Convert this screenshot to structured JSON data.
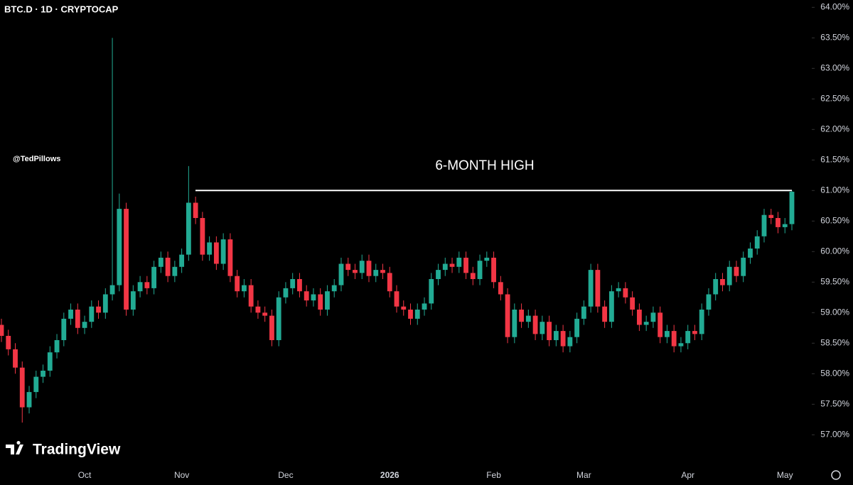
{
  "chart_data": {
    "type": "candlestick",
    "title": "BTC.D · 1D · CRYPTOCAP",
    "watermark": "@TedPillows",
    "brand": "TradingView",
    "annotation": {
      "text": "6-MONTH HIGH",
      "level": 61
    },
    "up_color": "#22ab94",
    "down_color": "#f23645",
    "ylim": [
      56.48,
      64.12
    ],
    "yticks": [
      {
        "value": 57,
        "label": "57.00%"
      },
      {
        "value": 57.5,
        "label": "57.50%"
      },
      {
        "value": 58,
        "label": "58.00%"
      },
      {
        "value": 58.5,
        "label": "58.50%"
      },
      {
        "value": 59,
        "label": "59.00%"
      },
      {
        "value": 59.5,
        "label": "59.50%"
      },
      {
        "value": 60,
        "label": "60.00%"
      },
      {
        "value": 60.5,
        "label": "60.50%"
      },
      {
        "value": 61,
        "label": "61.00%"
      },
      {
        "value": 61.5,
        "label": "61.50%"
      },
      {
        "value": 62,
        "label": "62.00%"
      },
      {
        "value": 62.5,
        "label": "62.50%"
      },
      {
        "value": 63,
        "label": "63.00%"
      },
      {
        "value": 63.5,
        "label": "63.50%"
      },
      {
        "value": 64,
        "label": "64.00%"
      }
    ],
    "categories": [
      null,
      null,
      null,
      null,
      null,
      null,
      null,
      null,
      null,
      null,
      null,
      null,
      "Oct",
      null,
      null,
      null,
      null,
      null,
      null,
      null,
      null,
      null,
      null,
      null,
      null,
      null,
      "Nov",
      null,
      null,
      null,
      null,
      null,
      null,
      null,
      null,
      null,
      null,
      null,
      null,
      null,
      null,
      "Dec",
      null,
      null,
      null,
      null,
      null,
      null,
      null,
      null,
      null,
      null,
      null,
      null,
      null,
      null,
      "2026",
      null,
      null,
      null,
      null,
      null,
      null,
      null,
      null,
      null,
      null,
      null,
      null,
      null,
      null,
      "Feb",
      null,
      null,
      null,
      null,
      null,
      null,
      null,
      null,
      null,
      null,
      null,
      null,
      "Mar",
      null,
      null,
      null,
      null,
      null,
      null,
      null,
      null,
      null,
      null,
      null,
      null,
      null,
      null,
      "Apr",
      null,
      null,
      null,
      null,
      null,
      null,
      null,
      null,
      null,
      null,
      null,
      null,
      null,
      "May",
      null
    ],
    "open": [
      58.8,
      58.62,
      58.4,
      58.1,
      57.45,
      57.7,
      57.95,
      58.05,
      58.35,
      58.55,
      58.9,
      59.05,
      58.75,
      58.85,
      59.1,
      59.0,
      59.3,
      59.45,
      60.7,
      59.05,
      59.35,
      59.5,
      59.4,
      59.75,
      59.9,
      59.6,
      59.75,
      59.95,
      60.8,
      60.55,
      59.95,
      60.15,
      59.8,
      60.2,
      59.6,
      59.35,
      59.45,
      59.1,
      59.0,
      58.95,
      58.55,
      59.25,
      59.4,
      59.55,
      59.35,
      59.2,
      59.3,
      59.05,
      59.35,
      59.45,
      59.8,
      59.7,
      59.65,
      59.85,
      59.6,
      59.7,
      59.65,
      59.35,
      59.1,
      59.05,
      58.9,
      59.05,
      59.15,
      59.55,
      59.7,
      59.8,
      59.75,
      59.9,
      59.65,
      59.55,
      59.85,
      59.9,
      59.5,
      59.3,
      58.6,
      59.05,
      58.85,
      58.95,
      58.65,
      58.85,
      58.55,
      58.7,
      58.45,
      58.6,
      58.9,
      59.1,
      59.7,
      59.1,
      58.85,
      59.35,
      59.4,
      59.25,
      59.05,
      58.8,
      58.85,
      59.0,
      58.6,
      58.7,
      58.45,
      58.5,
      58.7,
      58.65,
      59.05,
      59.3,
      59.55,
      59.45,
      59.75,
      59.6,
      59.9,
      60.05,
      60.25,
      60.6,
      60.55,
      60.4,
      60.45
    ],
    "high": [
      58.9,
      58.72,
      58.5,
      58.2,
      57.8,
      58.05,
      58.15,
      58.45,
      58.65,
      59.0,
      59.15,
      59.15,
      58.95,
      59.2,
      59.2,
      59.4,
      63.5,
      60.95,
      60.8,
      59.45,
      59.6,
      59.6,
      59.85,
      60.0,
      60.0,
      59.85,
      60.05,
      61.4,
      60.9,
      60.65,
      60.25,
      60.25,
      60.3,
      60.3,
      59.7,
      59.55,
      59.55,
      59.2,
      59.1,
      59.05,
      59.35,
      59.5,
      59.65,
      59.65,
      59.45,
      59.4,
      59.4,
      59.45,
      59.55,
      59.9,
      59.9,
      59.8,
      59.95,
      59.95,
      59.8,
      59.8,
      59.75,
      59.45,
      59.2,
      59.15,
      59.15,
      59.25,
      59.65,
      59.8,
      59.9,
      59.9,
      60.0,
      60.0,
      59.75,
      59.95,
      60.0,
      60.0,
      59.6,
      59.4,
      59.15,
      59.15,
      59.05,
      59.05,
      58.95,
      58.95,
      58.8,
      58.8,
      58.7,
      59.0,
      59.2,
      59.8,
      59.8,
      59.2,
      59.45,
      59.5,
      59.5,
      59.35,
      59.15,
      58.95,
      59.1,
      59.1,
      58.8,
      58.8,
      58.6,
      58.8,
      58.8,
      59.15,
      59.4,
      59.65,
      59.65,
      59.85,
      59.85,
      60.0,
      60.15,
      60.35,
      60.7,
      60.7,
      60.65,
      60.55,
      61.0
    ],
    "low": [
      58.52,
      58.3,
      58.0,
      57.2,
      57.35,
      57.6,
      57.85,
      57.95,
      58.25,
      58.45,
      58.8,
      58.65,
      58.65,
      58.75,
      58.9,
      58.9,
      59.2,
      59.35,
      58.95,
      58.95,
      59.25,
      59.3,
      59.3,
      59.65,
      59.5,
      59.5,
      59.65,
      59.85,
      60.45,
      59.85,
      59.85,
      59.7,
      59.7,
      59.5,
      59.25,
      59.25,
      59.0,
      58.9,
      58.85,
      58.45,
      58.45,
      59.15,
      59.3,
      59.25,
      59.1,
      59.1,
      58.95,
      58.95,
      59.25,
      59.35,
      59.6,
      59.55,
      59.55,
      59.5,
      59.5,
      59.55,
      59.25,
      59.0,
      58.95,
      58.8,
      58.8,
      58.95,
      59.05,
      59.45,
      59.6,
      59.65,
      59.65,
      59.55,
      59.45,
      59.45,
      59.75,
      59.4,
      59.2,
      58.5,
      58.5,
      58.75,
      58.75,
      58.55,
      58.55,
      58.45,
      58.45,
      58.35,
      58.35,
      58.5,
      58.8,
      59.0,
      59.0,
      58.75,
      58.75,
      59.25,
      59.15,
      58.95,
      58.7,
      58.7,
      58.75,
      58.5,
      58.5,
      58.35,
      58.35,
      58.4,
      58.55,
      58.55,
      58.95,
      59.2,
      59.35,
      59.35,
      59.5,
      59.5,
      59.8,
      59.95,
      60.15,
      60.45,
      60.3,
      60.3,
      60.35
    ],
    "close": [
      58.62,
      58.4,
      58.1,
      57.45,
      57.7,
      57.95,
      58.05,
      58.35,
      58.55,
      58.9,
      59.05,
      58.75,
      58.85,
      59.1,
      59.0,
      59.3,
      59.45,
      60.7,
      59.05,
      59.35,
      59.5,
      59.4,
      59.75,
      59.9,
      59.6,
      59.75,
      59.95,
      60.8,
      60.55,
      59.95,
      60.15,
      59.8,
      60.2,
      59.6,
      59.35,
      59.45,
      59.1,
      59.0,
      58.95,
      58.55,
      59.25,
      59.4,
      59.55,
      59.35,
      59.2,
      59.3,
      59.05,
      59.35,
      59.45,
      59.8,
      59.7,
      59.65,
      59.85,
      59.6,
      59.7,
      59.65,
      59.35,
      59.1,
      59.05,
      58.9,
      59.05,
      59.15,
      59.55,
      59.7,
      59.8,
      59.75,
      59.9,
      59.65,
      59.55,
      59.85,
      59.9,
      59.5,
      59.3,
      58.6,
      59.05,
      58.85,
      58.95,
      58.65,
      58.85,
      58.55,
      58.7,
      58.45,
      58.6,
      58.9,
      59.1,
      59.7,
      59.1,
      58.85,
      59.35,
      59.4,
      59.25,
      59.05,
      58.8,
      58.85,
      59.0,
      58.6,
      58.7,
      58.45,
      58.5,
      58.7,
      58.65,
      59.05,
      59.3,
      59.55,
      59.45,
      59.75,
      59.6,
      59.9,
      60.05,
      60.25,
      60.6,
      60.55,
      60.4,
      60.45,
      60.98
    ]
  }
}
